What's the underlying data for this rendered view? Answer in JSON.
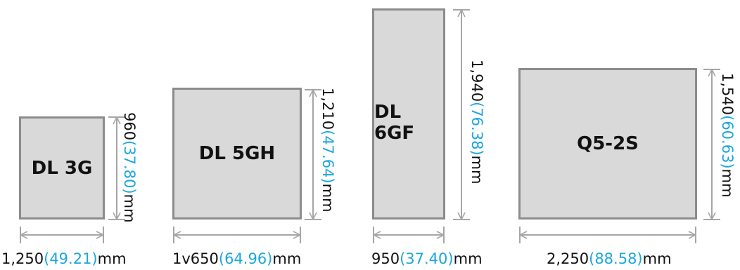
{
  "colors": {
    "box_fill": "#d9d9d9",
    "box_border": "#8c8c8c",
    "arrow": "#a6a6a6",
    "inch_text": "#1aa6e0"
  },
  "products": [
    {
      "name": "DL 3G",
      "width": {
        "mm": "1,250",
        "in": "(49.21)",
        "unit": "mm"
      },
      "height": {
        "mm": "960",
        "in": "(37.80)",
        "unit": "mm"
      }
    },
    {
      "name": "DL 5GH",
      "width": {
        "mm": "1v650",
        "in": "(64.96)",
        "unit": "mm"
      },
      "height": {
        "mm": "1,210",
        "in": "(47.64)",
        "unit": "mm"
      }
    },
    {
      "name": "DL 6GF",
      "width": {
        "mm": "950",
        "in": "(37.40)",
        "unit": "mm"
      },
      "height": {
        "mm": "1,940",
        "in": "(76.38)",
        "unit": "mm"
      }
    },
    {
      "name": "Q5-2S",
      "width": {
        "mm": "2,250",
        "in": "(88.58)",
        "unit": "mm"
      },
      "height": {
        "mm": "1,540",
        "in": "(60.63)",
        "unit": "mm"
      }
    }
  ]
}
